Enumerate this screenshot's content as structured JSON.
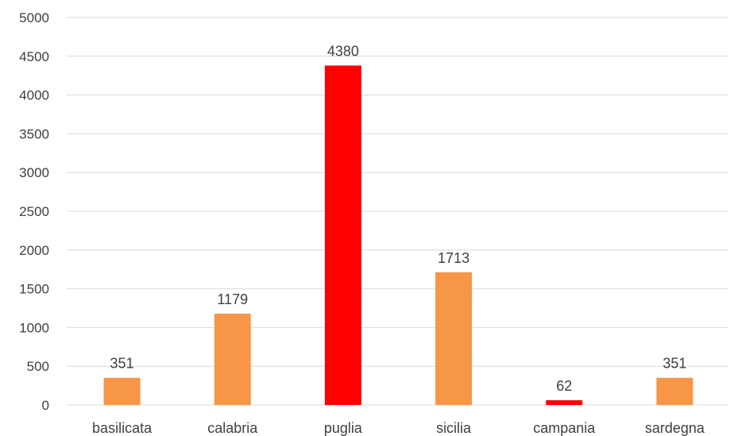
{
  "chart_data": {
    "type": "bar",
    "title": "",
    "xlabel": "",
    "ylabel": "",
    "categories": [
      "basilicata",
      "calabria",
      "puglia",
      "sicilia",
      "campania",
      "sardegna"
    ],
    "values": [
      351,
      1179,
      4380,
      1713,
      62,
      351
    ],
    "bar_colors": [
      "#F79646",
      "#F79646",
      "#FF0000",
      "#F79646",
      "#FF0000",
      "#F79646"
    ],
    "ylim": [
      0,
      5000
    ],
    "yticks": [
      0,
      500,
      1000,
      1500,
      2000,
      2500,
      3000,
      3500,
      4000,
      4500,
      5000
    ],
    "grid": true,
    "legend": "none",
    "data_labels": true
  }
}
